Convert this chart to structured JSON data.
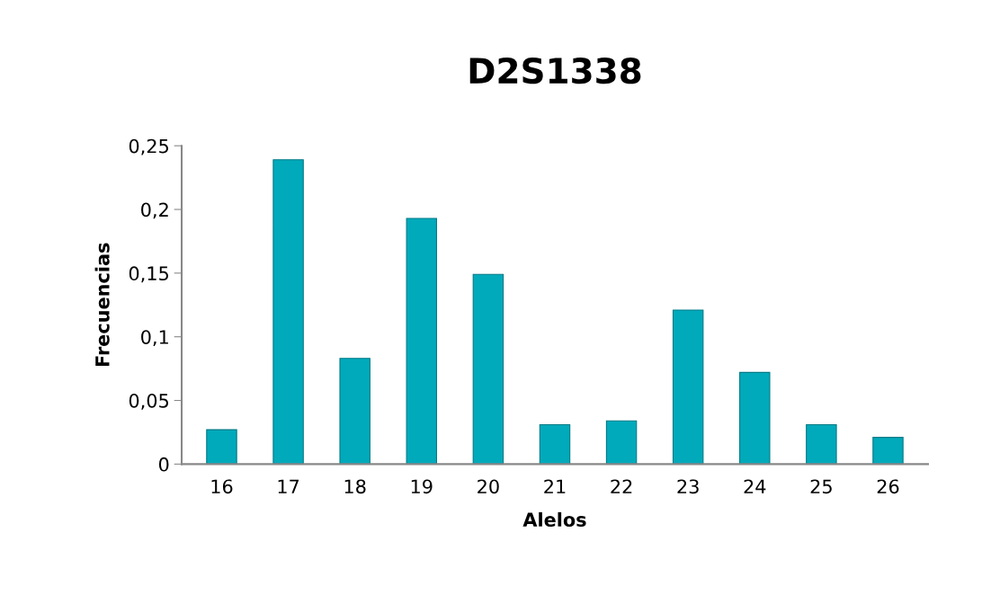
{
  "chart_data": {
    "type": "bar",
    "title": "D2S1338",
    "xlabel": "Alelos",
    "ylabel": "Frecuencias",
    "categories": [
      "16",
      "17",
      "18",
      "19",
      "20",
      "21",
      "22",
      "23",
      "24",
      "25",
      "26"
    ],
    "values": [
      0.027,
      0.239,
      0.083,
      0.193,
      0.149,
      0.031,
      0.034,
      0.121,
      0.072,
      0.031,
      0.021
    ],
    "color": "#00aabb",
    "ylim": [
      0,
      0.25
    ],
    "yticks": [
      {
        "value": 0,
        "label": "0"
      },
      {
        "value": 0.05,
        "label": "0,05"
      },
      {
        "value": 0.1,
        "label": "0,1"
      },
      {
        "value": 0.15,
        "label": "0,15"
      },
      {
        "value": 0.2,
        "label": "0,2"
      },
      {
        "value": 0.25,
        "label": "0,25"
      }
    ],
    "grid": false,
    "legend": false
  }
}
